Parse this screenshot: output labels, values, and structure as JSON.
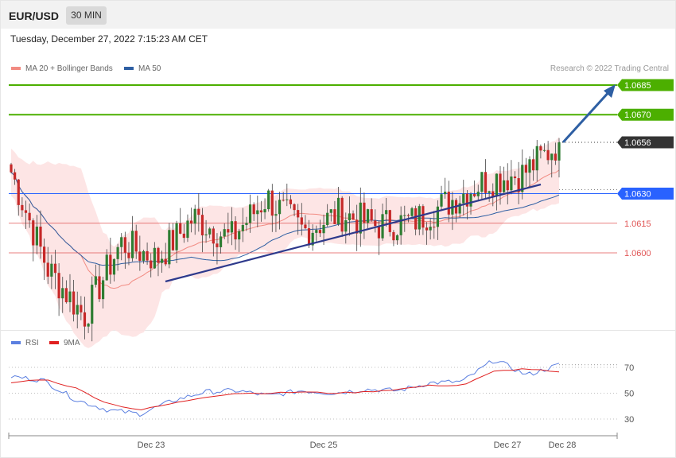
{
  "header": {
    "pair": "EUR/USD",
    "timeframe": "30 MIN"
  },
  "datetime": "Tuesday, December 27, 2022 7:15:23 AM CET",
  "legend_price": [
    {
      "label": "MA 20 + Bollinger Bands",
      "color": "#f28b82"
    },
    {
      "label": "MA 50",
      "color": "#2e5fa3"
    }
  ],
  "credit": "Research © 2022 Trading Central",
  "legend_rsi": [
    {
      "label": "RSI",
      "color": "#5b7fe0"
    },
    {
      "label": "9MA",
      "color": "#e02020"
    }
  ],
  "colors": {
    "up": "#2e7d32",
    "down": "#c62828",
    "resistance": "#4caf00",
    "pivot": "#2962ff",
    "support": "#e05555",
    "current": "#333333",
    "trendline": "#2e3a8c",
    "arrow": "#2e5fa3"
  },
  "chart_data": [
    {
      "type": "candlestick",
      "price_ylim": [
        1.0559,
        1.0712
      ],
      "x_labels": [
        "Dec 23",
        "Dec 25",
        "Dec 27",
        "Dec 28"
      ],
      "levels": [
        {
          "value": 1.0685,
          "label": "1.0685",
          "kind": "resistance"
        },
        {
          "value": 1.067,
          "label": "1.0670",
          "kind": "resistance"
        },
        {
          "value": 1.0656,
          "label": "1.0656",
          "kind": "current"
        },
        {
          "value": 1.063,
          "label": "1.0630",
          "kind": "pivot"
        },
        {
          "value": 1.0615,
          "label": "1.0615",
          "kind": "support"
        },
        {
          "value": 1.06,
          "label": "1.0600",
          "kind": "support"
        }
      ],
      "candle_count": 150,
      "series_close_approx": [
        1.0641,
        1.0592,
        1.0568,
        1.0605,
        1.0597,
        1.0618,
        1.0607,
        1.0628,
        1.0611,
        1.062,
        1.0614,
        1.0616,
        1.0626,
        1.0637,
        1.064,
        1.0656
      ]
    },
    {
      "type": "line",
      "title": "RSI",
      "ylim": [
        20,
        80
      ],
      "y_ticks": [
        70,
        50,
        30
      ],
      "series": [
        {
          "name": "RSI",
          "values_approx": [
            63,
            60,
            45,
            37,
            34,
            44,
            51,
            52,
            48,
            52,
            50,
            53,
            52,
            58,
            59,
            76,
            64,
            72
          ]
        },
        {
          "name": "9MA",
          "values_approx": [
            58,
            61,
            54,
            42,
            37,
            42,
            47,
            50,
            50,
            51,
            50,
            51,
            53,
            56,
            56,
            67,
            69,
            66
          ]
        }
      ]
    }
  ]
}
